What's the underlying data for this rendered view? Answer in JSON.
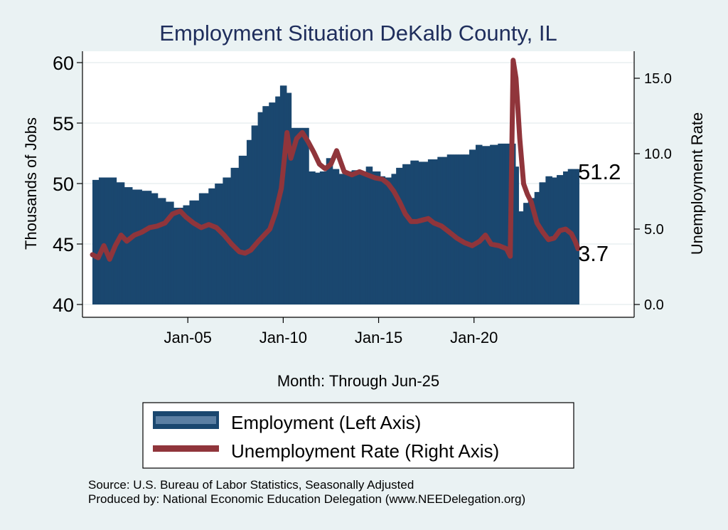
{
  "chart_data": {
    "type": "bar+line",
    "title": "Employment Situation DeKalb  County, IL",
    "xlabel": "Month: Through Jun-25",
    "ylabel_left": "Thousands of Jobs",
    "ylabel_right": "Unemployment Rate",
    "ylim_left": [
      40,
      60
    ],
    "ylim_right": [
      0,
      16.2
    ],
    "yticks_left": [
      "40",
      "45",
      "50",
      "55",
      "60"
    ],
    "yticks_right": [
      "0.0",
      "5.0",
      "10.0",
      "15.0"
    ],
    "xticks": [
      "Jan-05",
      "Jan-10",
      "Jan-15",
      "Jan-20"
    ],
    "x_range": [
      2000.0,
      2025.45
    ],
    "last_employment_label": "51.2",
    "last_unemployment_label": "3.7",
    "colors": {
      "employment": "#1a476f",
      "unemployment": "#90353b",
      "background": "#eaf2f3",
      "plot": "#ffffff"
    },
    "series": [
      {
        "name": "Employment (Left Axis)",
        "type": "bar",
        "points": [
          [
            2000.0,
            50.3
          ],
          [
            2000.3,
            50.5
          ],
          [
            2000.8,
            50.5
          ],
          [
            2001.2,
            50.1
          ],
          [
            2001.6,
            49.7
          ],
          [
            2002.0,
            49.5
          ],
          [
            2002.5,
            49.4
          ],
          [
            2003.0,
            49.2
          ],
          [
            2003.4,
            48.8
          ],
          [
            2003.8,
            48.5
          ],
          [
            2004.2,
            48.0
          ],
          [
            2004.7,
            48.2
          ],
          [
            2005.0,
            48.6
          ],
          [
            2005.5,
            49.2
          ],
          [
            2006.0,
            49.6
          ],
          [
            2006.4,
            50.0
          ],
          [
            2006.8,
            50.5
          ],
          [
            2007.2,
            51.3
          ],
          [
            2007.6,
            52.3
          ],
          [
            2008.0,
            53.6
          ],
          [
            2008.3,
            54.8
          ],
          [
            2008.6,
            55.9
          ],
          [
            2008.9,
            56.4
          ],
          [
            2009.2,
            56.7
          ],
          [
            2009.5,
            57.2
          ],
          [
            2009.8,
            58.1
          ],
          [
            2010.1,
            57.5
          ],
          [
            2010.4,
            54.6
          ],
          [
            2010.6,
            54.6
          ],
          [
            2011.0,
            54.6
          ],
          [
            2011.2,
            54.6
          ],
          [
            2011.3,
            51.0
          ],
          [
            2011.6,
            50.9
          ],
          [
            2011.9,
            51.0
          ],
          [
            2012.2,
            52.1
          ],
          [
            2012.5,
            51.2
          ],
          [
            2012.9,
            50.8
          ],
          [
            2013.2,
            51.0
          ],
          [
            2013.5,
            51.1
          ],
          [
            2013.9,
            51.0
          ],
          [
            2014.3,
            51.4
          ],
          [
            2014.6,
            51.0
          ],
          [
            2015.0,
            50.6
          ],
          [
            2015.3,
            50.5
          ],
          [
            2015.6,
            50.8
          ],
          [
            2015.9,
            51.3
          ],
          [
            2016.2,
            51.6
          ],
          [
            2016.6,
            51.9
          ],
          [
            2017.0,
            51.8
          ],
          [
            2017.5,
            52.0
          ],
          [
            2018.0,
            52.2
          ],
          [
            2018.5,
            52.4
          ],
          [
            2019.0,
            52.4
          ],
          [
            2019.3,
            52.4
          ],
          [
            2019.7,
            52.8
          ],
          [
            2020.0,
            53.2
          ],
          [
            2020.4,
            53.1
          ],
          [
            2020.8,
            53.2
          ],
          [
            2021.2,
            53.3
          ],
          [
            2021.6,
            53.3
          ],
          [
            2021.9,
            53.3
          ],
          [
            2022.1,
            51.4
          ],
          [
            2022.3,
            47.7
          ],
          [
            2022.5,
            48.4
          ],
          [
            2022.8,
            48.8
          ],
          [
            2023.1,
            49.3
          ],
          [
            2023.4,
            50.1
          ],
          [
            2023.7,
            50.6
          ],
          [
            2024.0,
            50.5
          ],
          [
            2024.3,
            50.7
          ],
          [
            2024.6,
            51.0
          ],
          [
            2024.9,
            51.2
          ],
          [
            2025.2,
            51.2
          ],
          [
            2025.45,
            51.2
          ]
        ]
      },
      {
        "name": "Unemployment Rate (Right Axis)",
        "type": "line",
        "points": [
          [
            2000.0,
            3.3
          ],
          [
            2000.3,
            3.1
          ],
          [
            2000.6,
            3.9
          ],
          [
            2000.9,
            3.0
          ],
          [
            2001.2,
            3.9
          ],
          [
            2001.5,
            4.6
          ],
          [
            2001.8,
            4.2
          ],
          [
            2002.2,
            4.6
          ],
          [
            2002.6,
            4.8
          ],
          [
            2003.0,
            5.1
          ],
          [
            2003.4,
            5.2
          ],
          [
            2003.8,
            5.4
          ],
          [
            2004.2,
            6.0
          ],
          [
            2004.6,
            6.2
          ],
          [
            2004.9,
            5.8
          ],
          [
            2005.3,
            5.4
          ],
          [
            2005.7,
            5.1
          ],
          [
            2006.1,
            5.3
          ],
          [
            2006.5,
            5.1
          ],
          [
            2006.9,
            4.6
          ],
          [
            2007.3,
            4.0
          ],
          [
            2007.7,
            3.5
          ],
          [
            2008.0,
            3.4
          ],
          [
            2008.3,
            3.6
          ],
          [
            2008.7,
            4.2
          ],
          [
            2009.0,
            4.6
          ],
          [
            2009.3,
            5.0
          ],
          [
            2009.6,
            6.1
          ],
          [
            2009.9,
            7.7
          ],
          [
            2010.2,
            11.4
          ],
          [
            2010.4,
            9.7
          ],
          [
            2010.7,
            11.0
          ],
          [
            2011.0,
            11.4
          ],
          [
            2011.3,
            10.8
          ],
          [
            2011.6,
            10.1
          ],
          [
            2011.9,
            9.3
          ],
          [
            2012.2,
            9.0
          ],
          [
            2012.5,
            9.3
          ],
          [
            2012.8,
            10.2
          ],
          [
            2013.2,
            8.8
          ],
          [
            2013.6,
            8.6
          ],
          [
            2014.0,
            8.8
          ],
          [
            2014.4,
            8.6
          ],
          [
            2014.8,
            8.4
          ],
          [
            2015.2,
            8.3
          ],
          [
            2015.5,
            8.0
          ],
          [
            2015.8,
            7.5
          ],
          [
            2016.1,
            6.8
          ],
          [
            2016.4,
            6.0
          ],
          [
            2016.7,
            5.5
          ],
          [
            2017.0,
            5.5
          ],
          [
            2017.3,
            5.6
          ],
          [
            2017.6,
            5.7
          ],
          [
            2017.9,
            5.4
          ],
          [
            2018.3,
            5.2
          ],
          [
            2018.7,
            4.8
          ],
          [
            2019.1,
            4.4
          ],
          [
            2019.5,
            4.1
          ],
          [
            2019.9,
            3.9
          ],
          [
            2020.3,
            4.2
          ],
          [
            2020.6,
            4.6
          ],
          [
            2020.9,
            4.0
          ],
          [
            2021.3,
            3.9
          ],
          [
            2021.7,
            3.7
          ],
          [
            2021.9,
            3.2
          ],
          [
            2022.05,
            16.2
          ],
          [
            2022.2,
            15.0
          ],
          [
            2022.4,
            11.0
          ],
          [
            2022.6,
            8.0
          ],
          [
            2022.8,
            7.3
          ],
          [
            2023.0,
            6.8
          ],
          [
            2023.3,
            5.4
          ],
          [
            2023.6,
            4.8
          ],
          [
            2023.9,
            4.3
          ],
          [
            2024.2,
            4.4
          ],
          [
            2024.5,
            4.9
          ],
          [
            2024.8,
            5.0
          ],
          [
            2025.1,
            4.7
          ],
          [
            2025.3,
            4.2
          ],
          [
            2025.45,
            3.7
          ]
        ]
      }
    ]
  },
  "legend": {
    "employment_label": "Employment (Left Axis)",
    "unemployment_label": "Unemployment Rate (Right Axis)"
  },
  "source_line": "Source: U.S. Bureau of Labor Statistics, Seasonally Adjusted",
  "produced_line": "Produced by: National Economic Education Delegation (www.NEEDelegation.org)"
}
